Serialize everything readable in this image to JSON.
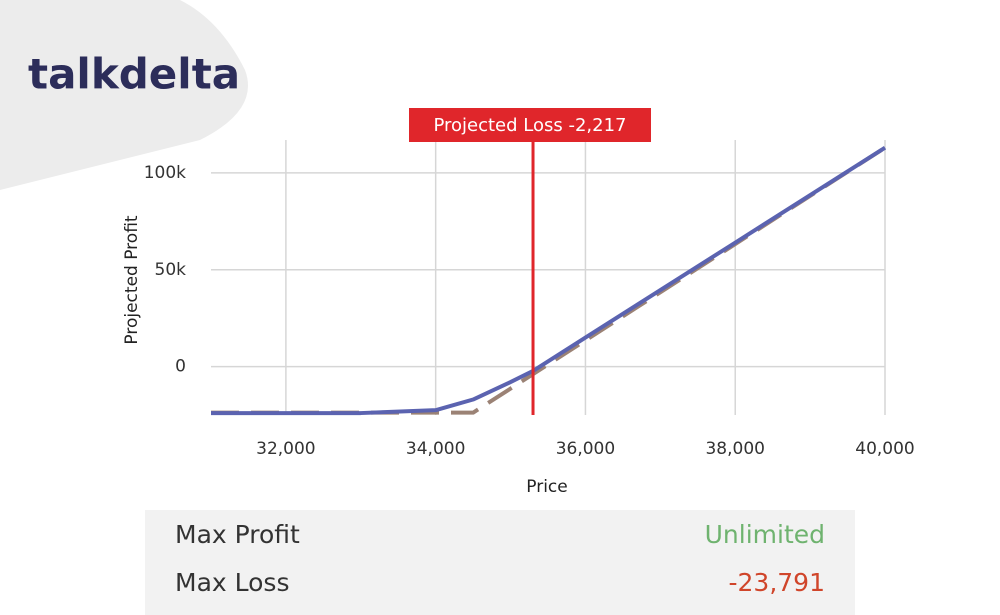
{
  "logo": "talkdelta",
  "chart_data": {
    "type": "line",
    "xlabel": "Price",
    "ylabel": "Projected Profit",
    "xlim": [
      31000,
      40000
    ],
    "ylim": [
      -25000,
      117000
    ],
    "xticks": [
      {
        "value": 32000,
        "label": "32,000"
      },
      {
        "value": 34000,
        "label": "34,000"
      },
      {
        "value": 36000,
        "label": "36,000"
      },
      {
        "value": 38000,
        "label": "38,000"
      },
      {
        "value": 40000,
        "label": "40,000"
      }
    ],
    "yticks": [
      0,
      {
        "value": 50000,
        "label": "50k"
      },
      {
        "value": 100000,
        "label": "100k"
      }
    ],
    "grid": true,
    "series": [
      {
        "color": "#9b8275",
        "dash": true,
        "x": [
          31000,
          34500,
          40000
        ],
        "values": [
          -23791,
          -23791,
          113000
        ]
      },
      {
        "color": "#5b63b0",
        "dash": false,
        "x": [
          31000,
          33000,
          34000,
          34500,
          35000,
          35300,
          36000,
          38000,
          40000
        ],
        "values": [
          -24000,
          -24000,
          -22500,
          -17000,
          -8000,
          -2217,
          15000,
          64000,
          113000
        ]
      }
    ],
    "annotation": {
      "x": 35300,
      "label": "Projected Loss -2,217",
      "color": "#e0262b"
    }
  },
  "summary": {
    "rows": [
      [
        "Max Profit",
        "Unlimited"
      ],
      [
        "Max Loss",
        "-23,791"
      ]
    ]
  }
}
